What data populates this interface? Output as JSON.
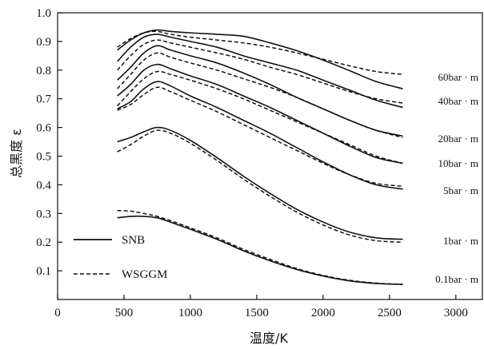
{
  "chart_data": {
    "type": "line",
    "xlabel": "温度/K",
    "ylabel": "总黑度 ε",
    "xlim": [
      0,
      3200
    ],
    "ylim": [
      0,
      1.0
    ],
    "xticks": [
      0,
      500,
      1000,
      1500,
      2000,
      2500,
      3000
    ],
    "yticks": [
      0.1,
      0.2,
      0.3,
      0.4,
      0.5,
      0.6,
      0.7,
      0.8,
      0.9,
      1.0
    ],
    "grid": false,
    "legend": {
      "placement": "lower-left",
      "entries": [
        {
          "name": "SNB",
          "style": "solid"
        },
        {
          "name": "WSGGM",
          "style": "dashed"
        }
      ]
    },
    "groups": [
      {
        "label": "60bar · m",
        "snb": {
          "x": [
            450,
            550,
            650,
            750,
            850,
            1000,
            1200,
            1400,
            1600,
            1800,
            2000,
            2200,
            2400,
            2600
          ],
          "y": [
            0.87,
            0.905,
            0.93,
            0.94,
            0.935,
            0.93,
            0.925,
            0.918,
            0.895,
            0.868,
            0.835,
            0.798,
            0.76,
            0.735
          ]
        },
        "wsggm": {
          "x": [
            450,
            550,
            650,
            750,
            850,
            1000,
            1200,
            1400,
            1600,
            1800,
            2000,
            2200,
            2400,
            2600
          ],
          "y": [
            0.88,
            0.91,
            0.93,
            0.935,
            0.925,
            0.915,
            0.905,
            0.895,
            0.88,
            0.86,
            0.838,
            0.815,
            0.795,
            0.785
          ]
        }
      },
      {
        "label": "40bar · m",
        "snb": {
          "x": [
            450,
            550,
            650,
            750,
            850,
            1000,
            1200,
            1400,
            1600,
            1800,
            2000,
            2200,
            2400,
            2600
          ],
          "y": [
            0.83,
            0.88,
            0.915,
            0.925,
            0.915,
            0.9,
            0.88,
            0.85,
            0.825,
            0.8,
            0.765,
            0.73,
            0.695,
            0.67
          ]
        },
        "wsggm": {
          "x": [
            450,
            550,
            650,
            750,
            850,
            1000,
            1200,
            1400,
            1600,
            1800,
            2000,
            2200,
            2400,
            2600
          ],
          "y": [
            0.8,
            0.85,
            0.89,
            0.905,
            0.895,
            0.88,
            0.86,
            0.838,
            0.81,
            0.785,
            0.755,
            0.725,
            0.7,
            0.685
          ]
        }
      },
      {
        "label": "20bar · m",
        "snb": {
          "x": [
            450,
            550,
            650,
            750,
            850,
            1000,
            1200,
            1400,
            1600,
            1800,
            2000,
            2200,
            2400,
            2600
          ],
          "y": [
            0.765,
            0.81,
            0.86,
            0.885,
            0.87,
            0.85,
            0.825,
            0.79,
            0.75,
            0.705,
            0.665,
            0.625,
            0.59,
            0.57
          ]
        },
        "wsggm": {
          "x": [
            450,
            550,
            650,
            750,
            850,
            1000,
            1200,
            1400,
            1600,
            1800,
            2000,
            2200,
            2400,
            2600
          ],
          "y": [
            0.735,
            0.785,
            0.835,
            0.86,
            0.845,
            0.825,
            0.8,
            0.77,
            0.74,
            0.705,
            0.665,
            0.625,
            0.59,
            0.565
          ]
        }
      },
      {
        "label": "10bar · m",
        "snb": {
          "x": [
            450,
            550,
            650,
            750,
            850,
            1000,
            1200,
            1400,
            1600,
            1800,
            2000,
            2200,
            2400,
            2600
          ],
          "y": [
            0.71,
            0.75,
            0.8,
            0.82,
            0.805,
            0.78,
            0.75,
            0.71,
            0.67,
            0.625,
            0.58,
            0.535,
            0.495,
            0.475
          ]
        },
        "wsggm": {
          "x": [
            450,
            550,
            650,
            750,
            850,
            1000,
            1200,
            1400,
            1600,
            1800,
            2000,
            2200,
            2400,
            2600
          ],
          "y": [
            0.675,
            0.725,
            0.77,
            0.795,
            0.785,
            0.765,
            0.735,
            0.7,
            0.66,
            0.62,
            0.58,
            0.54,
            0.5,
            0.475
          ]
        }
      },
      {
        "label": "5bar · m",
        "snb": {
          "x": [
            450,
            550,
            650,
            750,
            850,
            1000,
            1200,
            1400,
            1600,
            1800,
            2000,
            2200,
            2400,
            2600
          ],
          "y": [
            0.665,
            0.69,
            0.735,
            0.76,
            0.745,
            0.71,
            0.67,
            0.625,
            0.58,
            0.53,
            0.48,
            0.435,
            0.4,
            0.385
          ]
        },
        "wsggm": {
          "x": [
            450,
            550,
            650,
            750,
            850,
            1000,
            1200,
            1400,
            1600,
            1800,
            2000,
            2200,
            2400,
            2600
          ],
          "y": [
            0.66,
            0.68,
            0.715,
            0.74,
            0.725,
            0.695,
            0.655,
            0.61,
            0.565,
            0.52,
            0.475,
            0.435,
            0.405,
            0.395
          ]
        }
      },
      {
        "label": "1bar · m",
        "snb": {
          "x": [
            450,
            550,
            650,
            750,
            850,
            1000,
            1200,
            1400,
            1600,
            1800,
            2000,
            2200,
            2400,
            2600
          ],
          "y": [
            0.55,
            0.565,
            0.585,
            0.6,
            0.59,
            0.555,
            0.495,
            0.43,
            0.37,
            0.315,
            0.27,
            0.235,
            0.215,
            0.21
          ]
        },
        "wsggm": {
          "x": [
            450,
            550,
            650,
            750,
            850,
            1000,
            1200,
            1400,
            1600,
            1800,
            2000,
            2200,
            2400,
            2600
          ],
          "y": [
            0.515,
            0.54,
            0.57,
            0.59,
            0.58,
            0.545,
            0.485,
            0.42,
            0.36,
            0.305,
            0.26,
            0.225,
            0.205,
            0.2
          ]
        }
      },
      {
        "label": "0.1bar · m",
        "snb": {
          "x": [
            450,
            550,
            650,
            750,
            850,
            1000,
            1200,
            1400,
            1600,
            1800,
            2000,
            2200,
            2400,
            2600
          ],
          "y": [
            0.285,
            0.29,
            0.29,
            0.285,
            0.27,
            0.245,
            0.21,
            0.17,
            0.135,
            0.105,
            0.082,
            0.065,
            0.056,
            0.053
          ]
        },
        "wsggm": {
          "x": [
            450,
            550,
            650,
            750,
            850,
            1000,
            1200,
            1400,
            1600,
            1800,
            2000,
            2200,
            2400,
            2600
          ],
          "y": [
            0.31,
            0.308,
            0.3,
            0.29,
            0.275,
            0.25,
            0.215,
            0.175,
            0.14,
            0.108,
            0.084,
            0.067,
            0.057,
            0.052
          ]
        }
      }
    ]
  }
}
